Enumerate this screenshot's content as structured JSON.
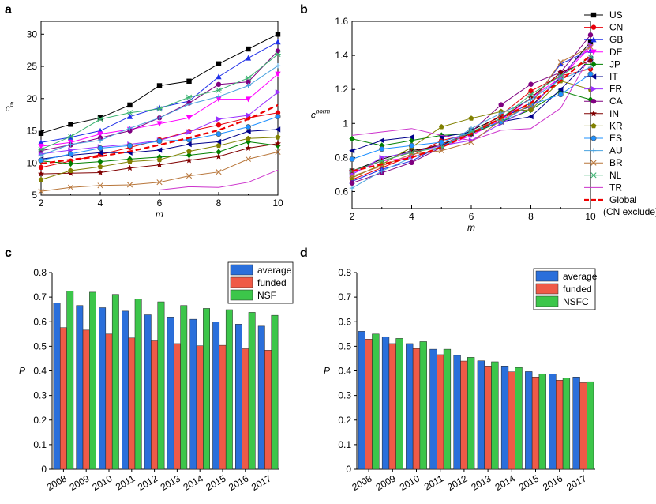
{
  "chart_data": [
    {
      "panel": "a",
      "type": "line",
      "xlabel": "m",
      "ylabel": "c5",
      "xlim": [
        2,
        10
      ],
      "ylim": [
        5,
        32
      ],
      "xticks": [
        2,
        4,
        6,
        8,
        10
      ],
      "yticks": [
        5,
        10,
        15,
        20,
        25,
        30
      ],
      "x": [
        2,
        3,
        4,
        5,
        6,
        7,
        8,
        9,
        10
      ],
      "series": [
        {
          "name": "US",
          "color": "#000000",
          "marker": "square",
          "values": [
            14.6,
            16.0,
            17.0,
            19.0,
            22.0,
            22.7,
            25.4,
            27.7,
            30.0
          ]
        },
        {
          "name": "CN",
          "color": "#e8000b",
          "marker": "circle",
          "values": [
            9.3,
            10.3,
            11.3,
            12.4,
            13.6,
            14.9,
            15.9,
            17.0,
            17.8
          ]
        },
        {
          "name": "GB",
          "color": "#1f2fe8",
          "marker": "triangle-up",
          "values": [
            13.2,
            14.0,
            15.0,
            17.2,
            18.6,
            19.6,
            23.4,
            26.3,
            28.8
          ]
        },
        {
          "name": "DE",
          "color": "#ff00ff",
          "marker": "triangle-down",
          "values": [
            12.6,
            13.2,
            14.5,
            15.2,
            16.1,
            17.0,
            19.9,
            19.9,
            23.8
          ]
        },
        {
          "name": "JP",
          "color": "#008000",
          "marker": "diamond",
          "values": [
            10.3,
            9.9,
            10.2,
            10.6,
            10.9,
            11.2,
            11.7,
            13.3,
            12.7
          ]
        },
        {
          "name": "IT",
          "color": "#00008b",
          "marker": "triangle-left",
          "values": [
            10.6,
            11.2,
            11.6,
            11.6,
            12.0,
            12.9,
            13.3,
            14.9,
            15.2
          ]
        },
        {
          "name": "FR",
          "color": "#9b30ff",
          "marker": "triangle-right",
          "values": [
            11.4,
            12.0,
            12.5,
            12.9,
            13.5,
            14.8,
            16.8,
            17.4,
            21.0
          ]
        },
        {
          "name": "CA",
          "color": "#800080",
          "marker": "circle",
          "values": [
            11.9,
            12.8,
            13.9,
            15.0,
            17.0,
            19.3,
            22.2,
            22.6,
            27.4
          ]
        },
        {
          "name": "IN",
          "color": "#800000",
          "marker": "star",
          "values": [
            8.3,
            8.4,
            8.5,
            9.2,
            9.7,
            10.4,
            11.0,
            12.3,
            13.0
          ]
        },
        {
          "name": "KR",
          "color": "#808000",
          "marker": "pentagon",
          "values": [
            7.4,
            8.8,
            9.4,
            10.2,
            10.5,
            11.8,
            12.7,
            13.8,
            14.0
          ]
        },
        {
          "name": "ES",
          "color": "#1e90ff",
          "marker": "circle-half",
          "values": [
            10.4,
            11.4,
            12.3,
            12.7,
            13.4,
            13.6,
            14.5,
            15.6,
            17.2
          ]
        },
        {
          "name": "AU",
          "color": "#4aa3df",
          "marker": "plus",
          "values": [
            11.2,
            12.9,
            13.5,
            15.4,
            17.0,
            19.1,
            20.3,
            22.0,
            25.1
          ]
        },
        {
          "name": "BR",
          "color": "#b8763a",
          "marker": "x",
          "values": [
            5.6,
            6.2,
            6.5,
            6.6,
            7.0,
            8.0,
            8.6,
            10.6,
            11.7
          ]
        },
        {
          "name": "NL",
          "color": "#3cb371",
          "marker": "asterisk",
          "values": [
            12.1,
            14.1,
            16.8,
            17.8,
            18.4,
            20.2,
            21.3,
            23.2,
            26.9
          ]
        },
        {
          "name": "TR",
          "color": "#cc33cc",
          "marker": "none",
          "values": [
            null,
            null,
            null,
            5.8,
            5.8,
            6.3,
            6.2,
            7.0,
            8.9
          ]
        },
        {
          "name": "Global (CN exclude)",
          "color": "#ee0000",
          "marker": "none",
          "dashed": true,
          "values": [
            9.9,
            10.5,
            11.0,
            11.8,
            12.8,
            13.9,
            15.1,
            16.8,
            19.0
          ]
        }
      ]
    },
    {
      "panel": "b",
      "type": "line",
      "xlabel": "m",
      "ylabel": "c5norm",
      "xlim": [
        2,
        10
      ],
      "ylim": [
        0.5,
        1.6
      ],
      "xticks": [
        2,
        4,
        6,
        8,
        10
      ],
      "yticks": [
        0.6,
        0.8,
        1.0,
        1.2,
        1.4,
        1.6
      ],
      "x": [
        2,
        3,
        4,
        5,
        6,
        7,
        8,
        9,
        10
      ],
      "series": [
        {
          "name": "US",
          "color": "#000000",
          "marker": "square",
          "values": [
            0.72,
            0.79,
            0.84,
            0.87,
            0.96,
            1.04,
            1.1,
            1.27,
            1.48
          ]
        },
        {
          "name": "CN",
          "color": "#e8000b",
          "marker": "circle",
          "values": [
            0.67,
            0.74,
            0.81,
            0.9,
            0.94,
            1.05,
            1.19,
            1.28,
            1.32
          ]
        },
        {
          "name": "GB",
          "color": "#1f2fe8",
          "marker": "triangle-up",
          "values": [
            0.66,
            0.73,
            0.78,
            0.87,
            0.94,
            1.03,
            1.12,
            1.35,
            1.43
          ]
        },
        {
          "name": "DE",
          "color": "#ff00ff",
          "marker": "triangle-down",
          "values": [
            0.71,
            0.78,
            0.8,
            0.86,
            0.93,
            1.02,
            1.15,
            1.27,
            1.45
          ]
        },
        {
          "name": "JP",
          "color": "#008000",
          "marker": "diamond",
          "values": [
            0.91,
            0.87,
            0.9,
            0.93,
            0.94,
            1.01,
            1.08,
            1.19,
            1.14
          ]
        },
        {
          "name": "IT",
          "color": "#00008b",
          "marker": "triangle-left",
          "values": [
            0.84,
            0.9,
            0.92,
            0.92,
            0.95,
            1.01,
            1.04,
            1.2,
            1.38
          ]
        },
        {
          "name": "FR",
          "color": "#9b30ff",
          "marker": "triangle-right",
          "values": [
            0.7,
            0.8,
            0.83,
            0.87,
            0.9,
            1.0,
            1.09,
            1.28,
            1.46
          ]
        },
        {
          "name": "CA",
          "color": "#800080",
          "marker": "circle",
          "values": [
            0.65,
            0.71,
            0.77,
            0.86,
            0.95,
            1.11,
            1.23,
            1.3,
            1.52
          ]
        },
        {
          "name": "IN",
          "color": "#800000",
          "marker": "star",
          "values": [
            0.72,
            0.78,
            0.83,
            0.88,
            0.94,
            1.03,
            1.15,
            1.3,
            1.37
          ]
        },
        {
          "name": "KR",
          "color": "#808000",
          "marker": "pentagon",
          "values": [
            0.68,
            0.76,
            0.86,
            0.98,
            1.03,
            1.07,
            1.08,
            1.25,
            1.2
          ]
        },
        {
          "name": "ES",
          "color": "#1e90ff",
          "marker": "circle-half",
          "values": [
            0.79,
            0.85,
            0.87,
            0.89,
            0.95,
            1.01,
            1.11,
            1.17,
            1.29
          ]
        },
        {
          "name": "AU",
          "color": "#4aa3df",
          "marker": "plus",
          "values": [
            0.62,
            0.72,
            0.8,
            0.86,
            0.97,
            1.06,
            1.14,
            1.26,
            1.33
          ]
        },
        {
          "name": "BR",
          "color": "#b8763a",
          "marker": "x",
          "values": [
            0.69,
            0.75,
            0.82,
            0.84,
            0.89,
            1.02,
            1.11,
            1.36,
            1.45
          ]
        },
        {
          "name": "NL",
          "color": "#3cb371",
          "marker": "asterisk",
          "values": [
            0.72,
            0.78,
            0.83,
            0.86,
            0.95,
            1.03,
            1.17,
            1.28,
            1.39
          ]
        },
        {
          "name": "TR",
          "color": "#cc33cc",
          "marker": "none",
          "values": [
            0.93,
            0.95,
            0.97,
            0.93,
            0.9,
            0.96,
            0.97,
            1.09,
            1.4
          ]
        },
        {
          "name": "Global (CN exclude)",
          "color": "#ee0000",
          "marker": "none",
          "dashed": true,
          "values": [
            0.72,
            0.76,
            0.8,
            0.86,
            0.94,
            1.03,
            1.12,
            1.25,
            1.4
          ]
        }
      ]
    },
    {
      "panel": "c",
      "type": "bar",
      "ylabel": "P",
      "ylim": [
        0,
        0.8
      ],
      "yticks": [
        0,
        0.1,
        0.2,
        0.3,
        0.4,
        0.5,
        0.6,
        0.7,
        0.8
      ],
      "categories": [
        "2008",
        "2009",
        "2010",
        "2011",
        "2012",
        "2013",
        "2014",
        "2015",
        "2016",
        "2017"
      ],
      "series": [
        {
          "name": "average",
          "color": "#2a6fdb",
          "values": [
            0.677,
            0.666,
            0.657,
            0.643,
            0.628,
            0.619,
            0.61,
            0.599,
            0.59,
            0.582
          ]
        },
        {
          "name": "funded",
          "color": "#ef5a47",
          "values": [
            0.576,
            0.566,
            0.55,
            0.534,
            0.522,
            0.511,
            0.502,
            0.504,
            0.49,
            0.484
          ]
        },
        {
          "name": "NSF",
          "color": "#3cc64a",
          "values": [
            0.724,
            0.72,
            0.711,
            0.693,
            0.681,
            0.666,
            0.654,
            0.649,
            0.638,
            0.626
          ]
        }
      ],
      "legend": "top-right"
    },
    {
      "panel": "d",
      "type": "bar",
      "ylabel": "P",
      "ylim": [
        0,
        0.8
      ],
      "yticks": [
        0,
        0.1,
        0.2,
        0.3,
        0.4,
        0.5,
        0.6,
        0.7,
        0.8
      ],
      "categories": [
        "2008",
        "2009",
        "2010",
        "2011",
        "2012",
        "2013",
        "2014",
        "2015",
        "2016",
        "2017"
      ],
      "series": [
        {
          "name": "average",
          "color": "#2a6fdb",
          "values": [
            0.561,
            0.539,
            0.511,
            0.488,
            0.463,
            0.441,
            0.42,
            0.397,
            0.387,
            0.375
          ]
        },
        {
          "name": "funded",
          "color": "#ef5a47",
          "values": [
            0.529,
            0.511,
            0.491,
            0.466,
            0.44,
            0.42,
            0.396,
            0.375,
            0.362,
            0.352
          ]
        },
        {
          "name": "NSFC",
          "color": "#3cc64a",
          "values": [
            0.55,
            0.532,
            0.519,
            0.488,
            0.455,
            0.437,
            0.414,
            0.388,
            0.371,
            0.356
          ]
        }
      ],
      "legend": "top-right"
    }
  ]
}
